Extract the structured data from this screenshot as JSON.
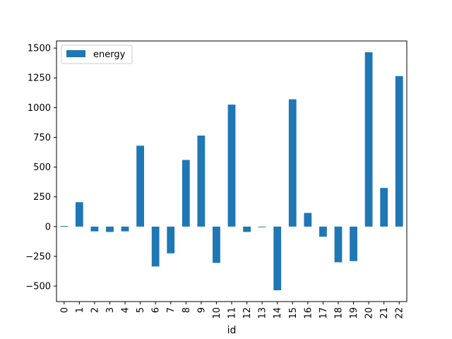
{
  "chart_data": {
    "type": "bar",
    "categories": [
      "0",
      "1",
      "2",
      "3",
      "4",
      "5",
      "6",
      "7",
      "8",
      "9",
      "10",
      "11",
      "12",
      "13",
      "14",
      "15",
      "16",
      "17",
      "18",
      "19",
      "20",
      "21",
      "22"
    ],
    "series": [
      {
        "name": "energy",
        "color": "#1f77b4",
        "values": [
          5,
          205,
          -40,
          -45,
          -40,
          680,
          -335,
          -225,
          560,
          765,
          -305,
          1025,
          -45,
          -5,
          -535,
          1070,
          115,
          -85,
          -300,
          -290,
          1465,
          325,
          1265
        ]
      }
    ],
    "xlabel": "id",
    "ylabel": "",
    "ylim": [
      -630,
      1560
    ],
    "yticks": [
      -500,
      -250,
      0,
      250,
      500,
      750,
      1000,
      1250,
      1500
    ],
    "ytick_labels": [
      "−500",
      "−250",
      "0",
      "250",
      "500",
      "750",
      "1000",
      "1250",
      "1500"
    ],
    "legend_position": "top-left",
    "grid": false
  }
}
